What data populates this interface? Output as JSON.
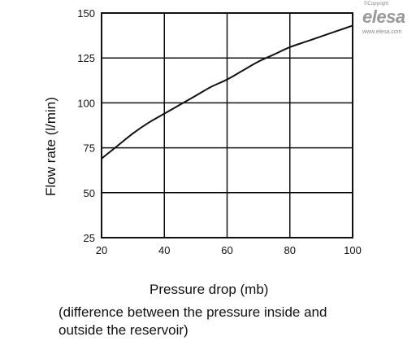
{
  "logo": {
    "copyright": "©Copyright",
    "name": "elesa",
    "url": "www.elesa.com"
  },
  "captions": {
    "line1": "(difference between the pressure inside and",
    "line2": "outside the reservoir)"
  },
  "chart_data": {
    "type": "line",
    "title": "",
    "xlabel": "Pressure drop (mb)",
    "ylabel": "Flow rate (l/min)",
    "xlim": [
      20,
      100
    ],
    "ylim": [
      25,
      150
    ],
    "xticks": [
      "20",
      "40",
      "60",
      "80",
      "100"
    ],
    "yticks": [
      "25",
      "50",
      "75",
      "100",
      "125",
      "150"
    ],
    "grid": true,
    "legend": "none",
    "series": [
      {
        "x": [
          20,
          25,
          30,
          35,
          40,
          45,
          50,
          55,
          60,
          65,
          70,
          75,
          80,
          85,
          90,
          95,
          100
        ],
        "y": [
          69,
          76,
          83,
          89,
          94,
          99,
          104,
          109,
          113,
          118,
          123,
          127,
          131,
          134,
          137,
          140,
          143
        ],
        "color": "#111111"
      }
    ]
  }
}
